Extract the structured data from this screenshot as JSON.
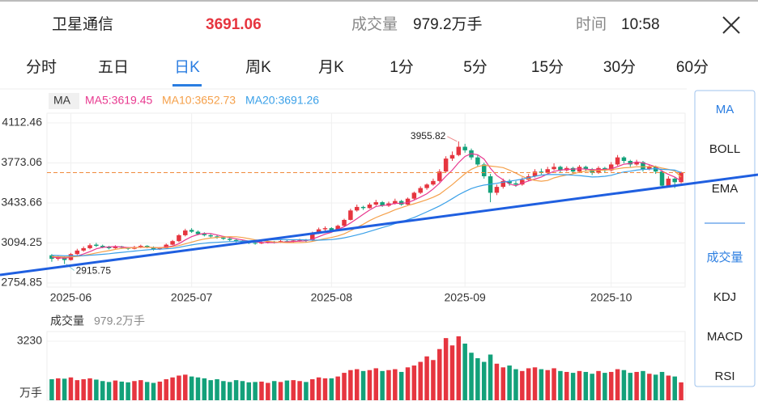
{
  "header": {
    "name": "卫星通信",
    "volume_label": "成交量",
    "time_label": "时间",
    "time": "10:58"
  },
  "tabs": [
    "分时",
    "五日",
    "日K",
    "周K",
    "月K",
    "1分",
    "5分",
    "15分",
    "30分",
    "60分"
  ],
  "active_tab": 2,
  "sidebar": {
    "main": [
      "MA",
      "BOLL",
      "EMA"
    ],
    "sub": [
      "成交量",
      "KDJ",
      "MACD",
      "RSI"
    ],
    "active_main": 0,
    "active_sub": 0
  },
  "chart_data": {
    "type": "candlestick",
    "indicator": "MA",
    "up_color": "#e6353f",
    "down_color": "#13a17a",
    "grid": true,
    "ylim": [
      2754.85,
      4112.46
    ],
    "yticks": [
      4112.46,
      3773.06,
      3433.66,
      3094.25,
      2754.85
    ],
    "categories": [
      null,
      null,
      null,
      "2025-06",
      null,
      null,
      null,
      null,
      null,
      null,
      null,
      null,
      null,
      null,
      null,
      null,
      null,
      null,
      null,
      null,
      null,
      null,
      "2025-07",
      null,
      null,
      null,
      null,
      null,
      null,
      null,
      null,
      null,
      null,
      null,
      null,
      null,
      null,
      null,
      null,
      null,
      null,
      null,
      null,
      null,
      "2025-08",
      null,
      null,
      null,
      null,
      null,
      null,
      null,
      null,
      null,
      null,
      null,
      null,
      null,
      null,
      null,
      null,
      null,
      null,
      null,
      null,
      "2025-09",
      null,
      null,
      null,
      null,
      null,
      null,
      null,
      null,
      null,
      null,
      null,
      null,
      null,
      null,
      null,
      null,
      null,
      null,
      null,
      null,
      null,
      null,
      "2025-10",
      null,
      null,
      null,
      null,
      null,
      null,
      null,
      null,
      null,
      null,
      null
    ],
    "candles": [
      [
        2990,
        3000,
        2935,
        2960
      ],
      [
        2960,
        2990,
        2945,
        2975
      ],
      [
        2975,
        2980,
        2915.75,
        2950
      ],
      [
        2950,
        3010,
        2945,
        3000
      ],
      [
        3000,
        3045,
        2990,
        3030
      ],
      [
        3030,
        3065,
        3020,
        3050
      ],
      [
        3050,
        3090,
        3040,
        3075
      ],
      [
        3080,
        3095,
        3060,
        3070
      ],
      [
        3070,
        3080,
        3050,
        3060
      ],
      [
        3060,
        3070,
        3040,
        3050
      ],
      [
        3050,
        3075,
        3045,
        3065
      ],
      [
        3065,
        3070,
        3045,
        3055
      ],
      [
        3055,
        3060,
        3035,
        3045
      ],
      [
        3045,
        3070,
        3040,
        3060
      ],
      [
        3060,
        3080,
        3050,
        3070
      ],
      [
        3070,
        3075,
        3050,
        3060
      ],
      [
        3060,
        3065,
        3030,
        3040
      ],
      [
        3040,
        3060,
        3035,
        3050
      ],
      [
        3050,
        3090,
        3045,
        3080
      ],
      [
        3080,
        3120,
        3075,
        3110
      ],
      [
        3110,
        3170,
        3100,
        3160
      ],
      [
        3160,
        3215,
        3150,
        3200
      ],
      [
        3205,
        3220,
        3180,
        3190
      ],
      [
        3190,
        3200,
        3160,
        3170
      ],
      [
        3170,
        3185,
        3150,
        3160
      ],
      [
        3160,
        3175,
        3140,
        3150
      ],
      [
        3150,
        3160,
        3130,
        3140
      ],
      [
        3140,
        3150,
        3120,
        3130
      ],
      [
        3130,
        3145,
        3110,
        3120
      ],
      [
        3120,
        3130,
        3100,
        3110
      ],
      [
        3110,
        3120,
        3090,
        3100
      ],
      [
        3100,
        3110,
        3085,
        3095
      ],
      [
        3095,
        3105,
        3080,
        3090
      ],
      [
        3090,
        3110,
        3085,
        3100
      ],
      [
        3100,
        3115,
        3090,
        3105
      ],
      [
        3105,
        3112,
        3090,
        3100
      ],
      [
        3100,
        3120,
        3095,
        3110
      ],
      [
        3110,
        3118,
        3095,
        3105
      ],
      [
        3105,
        3125,
        3100,
        3115
      ],
      [
        3115,
        3130,
        3105,
        3120
      ],
      [
        3120,
        3128,
        3100,
        3115
      ],
      [
        3115,
        3190,
        3110,
        3180
      ],
      [
        3180,
        3225,
        3170,
        3210
      ],
      [
        3210,
        3235,
        3195,
        3220
      ],
      [
        3220,
        3228,
        3190,
        3200
      ],
      [
        3200,
        3250,
        3195,
        3240
      ],
      [
        3240,
        3300,
        3230,
        3290
      ],
      [
        3290,
        3385,
        3285,
        3370
      ],
      [
        3370,
        3420,
        3360,
        3400
      ],
      [
        3400,
        3410,
        3375,
        3390
      ],
      [
        3390,
        3435,
        3385,
        3420
      ],
      [
        3420,
        3460,
        3410,
        3440
      ],
      [
        3440,
        3450,
        3400,
        3410
      ],
      [
        3410,
        3445,
        3400,
        3430
      ],
      [
        3430,
        3470,
        3420,
        3450
      ],
      [
        3450,
        3460,
        3410,
        3420
      ],
      [
        3420,
        3480,
        3415,
        3470
      ],
      [
        3470,
        3530,
        3460,
        3520
      ],
      [
        3520,
        3575,
        3510,
        3560
      ],
      [
        3560,
        3600,
        3545,
        3590
      ],
      [
        3590,
        3640,
        3580,
        3620
      ],
      [
        3620,
        3720,
        3610,
        3700
      ],
      [
        3700,
        3830,
        3690,
        3810
      ],
      [
        3810,
        3870,
        3790,
        3840
      ],
      [
        3840,
        3955.82,
        3830,
        3910
      ],
      [
        3910,
        3935,
        3860,
        3880
      ],
      [
        3880,
        3895,
        3800,
        3820
      ],
      [
        3820,
        3840,
        3740,
        3760
      ],
      [
        3760,
        3775,
        3640,
        3660
      ],
      [
        3660,
        3680,
        3440,
        3520
      ],
      [
        3520,
        3590,
        3500,
        3570
      ],
      [
        3570,
        3640,
        3555,
        3620
      ],
      [
        3620,
        3635,
        3580,
        3600
      ],
      [
        3600,
        3620,
        3570,
        3590
      ],
      [
        3590,
        3650,
        3580,
        3630
      ],
      [
        3630,
        3680,
        3620,
        3660
      ],
      [
        3660,
        3720,
        3650,
        3700
      ],
      [
        3700,
        3725,
        3675,
        3690
      ],
      [
        3690,
        3740,
        3680,
        3720
      ],
      [
        3720,
        3770,
        3710,
        3740
      ],
      [
        3740,
        3750,
        3690,
        3710
      ],
      [
        3710,
        3745,
        3700,
        3730
      ],
      [
        3730,
        3740,
        3680,
        3700
      ],
      [
        3700,
        3755,
        3690,
        3740
      ],
      [
        3740,
        3750,
        3700,
        3720
      ],
      [
        3720,
        3730,
        3670,
        3690
      ],
      [
        3690,
        3745,
        3680,
        3730
      ],
      [
        3730,
        3740,
        3690,
        3710
      ],
      [
        3710,
        3780,
        3700,
        3760
      ],
      [
        3760,
        3840,
        3750,
        3820
      ],
      [
        3820,
        3830,
        3770,
        3790
      ],
      [
        3790,
        3800,
        3740,
        3760
      ],
      [
        3760,
        3800,
        3750,
        3780
      ],
      [
        3780,
        3790,
        3700,
        3720
      ],
      [
        3720,
        3760,
        3710,
        3740
      ],
      [
        3740,
        3750,
        3680,
        3700
      ],
      [
        3700,
        3710,
        3560,
        3580
      ],
      [
        3580,
        3660,
        3570,
        3640
      ],
      [
        3640,
        3650,
        3560,
        3610
      ],
      [
        3610,
        3700,
        3600,
        3691.06
      ]
    ],
    "ma": [
      {
        "name": "MA5",
        "legend_label": "MA5:3619.45",
        "color": "#e8388f",
        "values": [
          2975,
          2970,
          2965,
          2975,
          2983,
          3001,
          3021,
          3045,
          3057,
          3061,
          3064,
          3060,
          3055,
          3055,
          3059,
          3058,
          3055,
          3054,
          3060,
          3068,
          3088,
          3120,
          3148,
          3166,
          3176,
          3174,
          3162,
          3150,
          3140,
          3130,
          3120,
          3111,
          3103,
          3099,
          3098,
          3098,
          3101,
          3104,
          3107,
          3110,
          3113,
          3127,
          3148,
          3169,
          3185,
          3210,
          3232,
          3264,
          3300,
          3338,
          3374,
          3404,
          3412,
          3418,
          3430,
          3430,
          3436,
          3458,
          3484,
          3512,
          3552,
          3602,
          3660,
          3712,
          3776,
          3828,
          3852,
          3842,
          3806,
          3728,
          3666,
          3630,
          3594,
          3580,
          3602,
          3620,
          3636,
          3654,
          3680,
          3702,
          3712,
          3718,
          3720,
          3724,
          3720,
          3716,
          3716,
          3718,
          3722,
          3742,
          3762,
          3768,
          3782,
          3774,
          3758,
          3740,
          3704,
          3676,
          3654,
          3619.45
        ]
      },
      {
        "name": "MA10",
        "legend_label": "MA10:3652.73",
        "color": "#f5a04a",
        "values": [
          2980,
          2978,
          2975,
          2976,
          2980,
          2988,
          2998,
          3010,
          3020,
          3029,
          3040,
          3048,
          3052,
          3054,
          3058,
          3059,
          3056,
          3054,
          3056,
          3062,
          3072,
          3087,
          3102,
          3116,
          3128,
          3136,
          3141,
          3145,
          3148,
          3147,
          3141,
          3131,
          3121,
          3114,
          3108,
          3103,
          3100,
          3097,
          3097,
          3098,
          3100,
          3108,
          3119,
          3131,
          3141,
          3154,
          3172,
          3198,
          3226,
          3253,
          3284,
          3310,
          3332,
          3353,
          3376,
          3394,
          3412,
          3427,
          3443,
          3462,
          3482,
          3508,
          3548,
          3589,
          3635,
          3681,
          3719,
          3743,
          3753,
          3746,
          3741,
          3733,
          3712,
          3687,
          3659,
          3637,
          3625,
          3618,
          3624,
          3646,
          3660,
          3671,
          3680,
          3695,
          3704,
          3707,
          3710,
          3712,
          3716,
          3724,
          3732,
          3735,
          3741,
          3740,
          3742,
          3743,
          3729,
          3719,
          3704,
          3652.73
        ]
      },
      {
        "name": "MA20",
        "legend_label": "MA20:3691.26",
        "color": "#3aa0e8",
        "values": [
          2990,
          2988,
          2986,
          2985,
          2985,
          2987,
          2990,
          2994,
          2998,
          3003,
          3009,
          3015,
          3020,
          3026,
          3031,
          3036,
          3040,
          3042,
          3045,
          3048,
          3057,
          3068,
          3078,
          3086,
          3092,
          3097,
          3100,
          3103,
          3106,
          3109,
          3111,
          3113,
          3116,
          3118,
          3120,
          3123,
          3124,
          3122,
          3122,
          3122,
          3120,
          3118,
          3118,
          3121,
          3123,
          3129,
          3138,
          3150,
          3162,
          3176,
          3192,
          3209,
          3225,
          3240,
          3258,
          3274,
          3292,
          3311,
          3334,
          3358,
          3383,
          3408,
          3438,
          3470,
          3503,
          3531,
          3556,
          3573,
          3585,
          3592,
          3600,
          3610,
          3618,
          3626,
          3636,
          3648,
          3660,
          3670,
          3674,
          3674,
          3674,
          3673,
          3669,
          3666,
          3660,
          3654,
          3656,
          3660,
          3668,
          3683,
          3696,
          3703,
          3712,
          3718,
          3721,
          3725,
          3718,
          3716,
          3712,
          3691.26
        ]
      }
    ],
    "volume_title": "成交量",
    "volume_unit": "万手",
    "vlim": [
      0,
      3760
    ],
    "vticks": [
      3230
    ],
    "volume": [
      1150,
      1200,
      1180,
      1250,
      1100,
      1150,
      1200,
      1130,
      1050,
      1000,
      1080,
      1020,
      980,
      1050,
      1100,
      1000,
      950,
      1020,
      1150,
      1250,
      1350,
      1400,
      1300,
      1250,
      1200,
      1100,
      1150,
      1050,
      1000,
      1100,
      1050,
      980,
      1000,
      1020,
      950,
      1050,
      1000,
      1080,
      1100,
      1050,
      1000,
      1150,
      1250,
      1200,
      1200,
      1300,
      1500,
      1650,
      1700,
      1600,
      1650,
      1750,
      1600,
      1650,
      1700,
      1550,
      1800,
      1900,
      2100,
      2400,
      2200,
      2800,
      3400,
      3000,
      3500,
      3100,
      2600,
      2300,
      2100,
      2500,
      2000,
      1800,
      1900,
      1700,
      1600,
      1750,
      1800,
      1700,
      1650,
      1750,
      1600,
      1550,
      1500,
      1600,
      1550,
      1450,
      1600,
      1500,
      1550,
      1700,
      1650,
      1500,
      1550,
      1600,
      1450,
      1400,
      1550,
      1350,
      1300,
      979.2
    ],
    "volume_value_labels": {
      "99": "979.2万手"
    }
  }
}
